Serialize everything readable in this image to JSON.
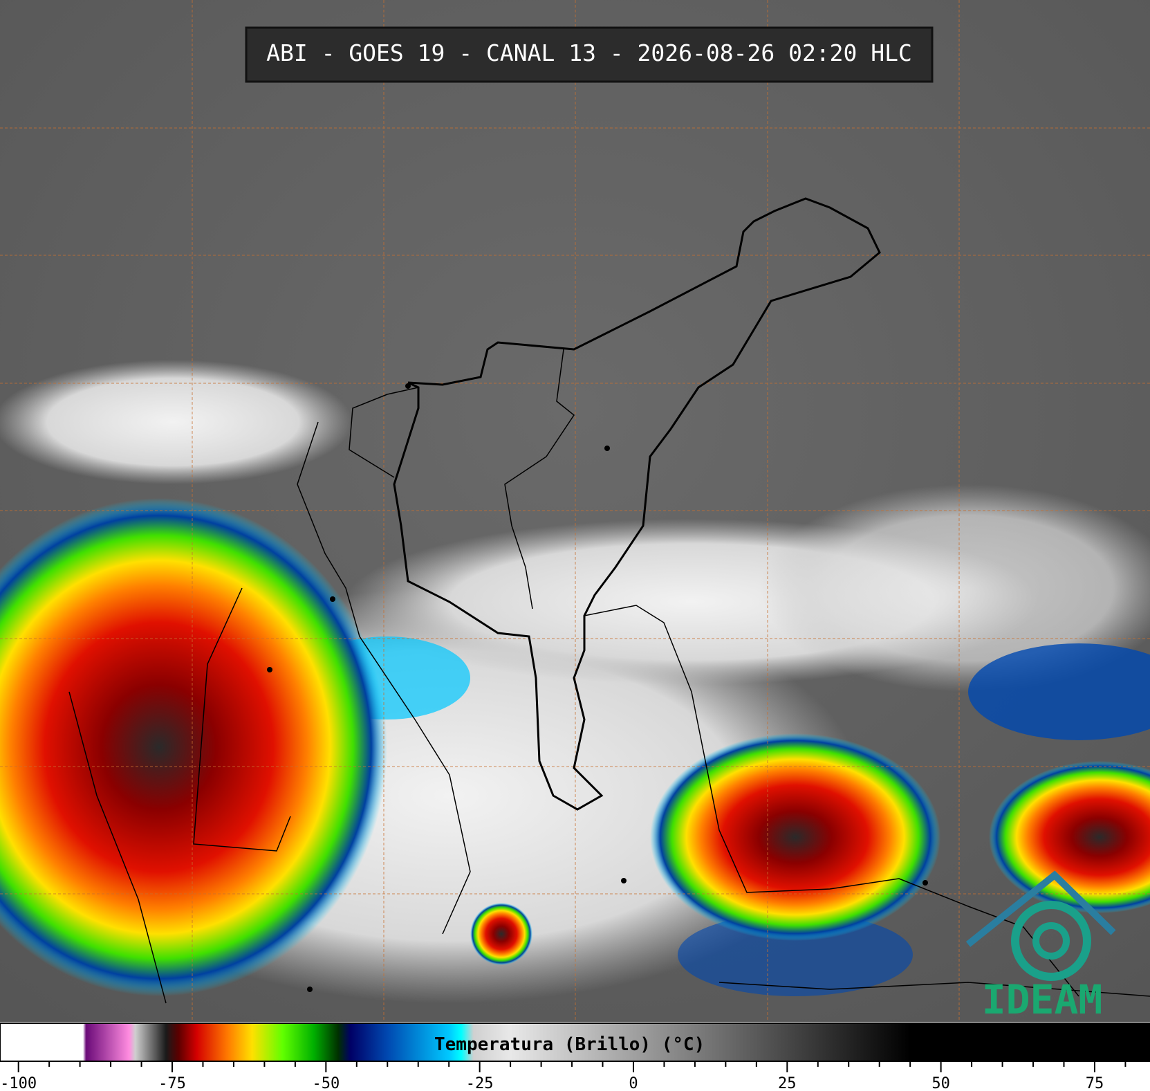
{
  "header": {
    "title": "ABI - GOES 19 - CANAL 13 - 2026-08-26 02:20 HLC"
  },
  "colorbar": {
    "label": "Temperatura (Brillo) (°C)",
    "xlim": [
      -103,
      84
    ],
    "xticks": [
      -100,
      -75,
      -50,
      -25,
      0,
      25,
      50,
      75
    ],
    "minor_ticks": [
      -95,
      -90,
      -85,
      -80,
      -70,
      -65,
      -60,
      -55,
      -45,
      -40,
      -35,
      -30,
      -20,
      -15,
      -10,
      -5,
      5,
      10,
      15,
      20,
      30,
      35,
      40,
      45,
      55,
      60,
      65,
      70,
      80
    ],
    "stops": [
      {
        "value": -103,
        "color": "#ffffff"
      },
      {
        "value": -89.5,
        "color": "#ffffff"
      },
      {
        "value": -89,
        "color": "#6a0a78"
      },
      {
        "value": -82,
        "color": "#ff8ce0"
      },
      {
        "value": -81,
        "color": "#cfcfcf"
      },
      {
        "value": -76,
        "color": "#1a1a1a"
      },
      {
        "value": -74,
        "color": "#5a0000"
      },
      {
        "value": -71,
        "color": "#d40000"
      },
      {
        "value": -66,
        "color": "#ff7a00"
      },
      {
        "value": -62,
        "color": "#ffe000"
      },
      {
        "value": -57,
        "color": "#60ff00"
      },
      {
        "value": -52,
        "color": "#00b000"
      },
      {
        "value": -48,
        "color": "#003000"
      },
      {
        "value": -46,
        "color": "#000066"
      },
      {
        "value": -40,
        "color": "#0048b0"
      },
      {
        "value": -30,
        "color": "#00c8ff"
      },
      {
        "value": -28,
        "color": "#00ffff"
      },
      {
        "value": -26,
        "color": "#d0d0d0"
      },
      {
        "value": -20,
        "color": "#e8e8e8"
      },
      {
        "value": 45,
        "color": "#000000"
      },
      {
        "value": 84,
        "color": "#000000"
      }
    ]
  },
  "logo": {
    "text": "IDEAM"
  }
}
